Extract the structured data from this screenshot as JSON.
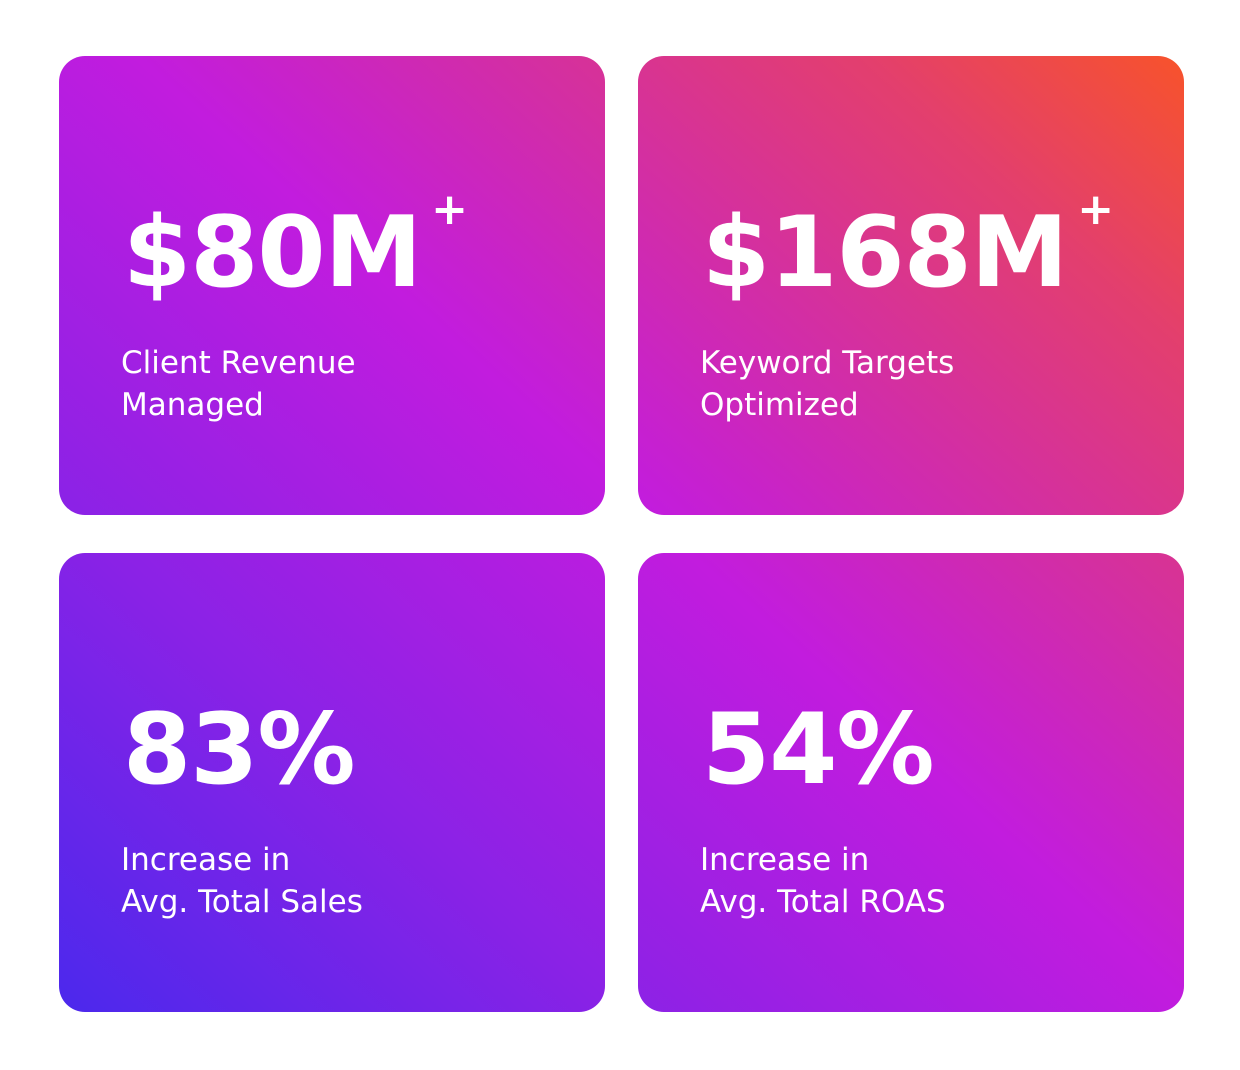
{
  "stats": [
    {
      "value": "$80M",
      "suffix": "+",
      "label_line1": "Client Revenue",
      "label_line2": "Managed"
    },
    {
      "value": "$168M",
      "suffix": "+",
      "label_line1": "Keyword Targets",
      "label_line2": "Optimized"
    },
    {
      "value": "83%",
      "suffix": "",
      "label_line1": "Increase in",
      "label_line2": "Avg. Total Sales"
    },
    {
      "value": "54%",
      "suffix": "",
      "label_line1": "Increase in",
      "label_line2": "Avg. Total ROAS"
    }
  ],
  "colors": {
    "gradient_orange": "#ff5a12",
    "gradient_magenta": "#c21cde",
    "gradient_blue": "#3d2aee",
    "text": "#ffffff"
  }
}
